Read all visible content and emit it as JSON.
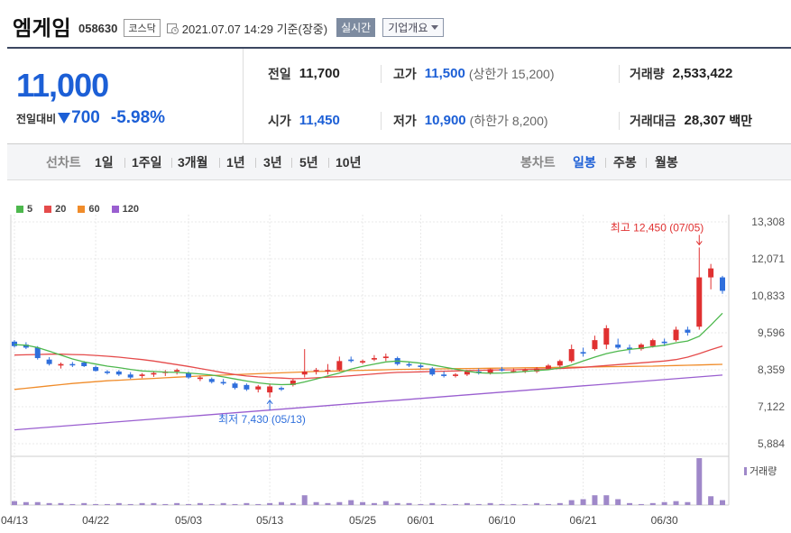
{
  "header": {
    "stock_name": "엠게임",
    "stock_code": "058630",
    "market": "코스닥",
    "timestamp": "2021.07.07 14:29 기준(장중)",
    "realtime_label": "실시간",
    "overview_label": "기업개요"
  },
  "quote": {
    "current_price": "11,000",
    "change_label": "전일대비",
    "change_value": "700",
    "change_pct": "-5.98%",
    "prev_close_label": "전일",
    "prev_close": "11,700",
    "high_label": "고가",
    "high": "11,500",
    "upper_limit": "(상한가 15,200)",
    "volume_label": "거래량",
    "volume": "2,533,422",
    "open_label": "시가",
    "open": "11,450",
    "low_label": "저가",
    "low": "10,900",
    "lower_limit": "(하한가 8,200)",
    "amount_label": "거래대금",
    "amount": "28,307",
    "amount_unit": "백만"
  },
  "periods": {
    "line_label": "선차트",
    "line_items": [
      "1일",
      "1주일",
      "3개월",
      "1년",
      "3년",
      "5년",
      "10년"
    ],
    "candle_label": "봉차트",
    "candle_items": [
      "일봉",
      "주봉",
      "월봉"
    ],
    "active_candle": "일봉"
  },
  "colors": {
    "up": "#e03131",
    "down": "#2f6fdc",
    "ma5": "#4db84d",
    "ma20": "#e54b4b",
    "ma60": "#f08c2a",
    "ma120": "#9a5fd0",
    "volume": "#9f88c9"
  },
  "chart_data": {
    "type": "candlestick",
    "legend": [
      {
        "name": "5",
        "color": "#4db84d"
      },
      {
        "name": "20",
        "color": "#e54b4b"
      },
      {
        "name": "60",
        "color": "#f08c2a"
      },
      {
        "name": "120",
        "color": "#9a5fd0"
      }
    ],
    "y_ticks": [
      "13,308",
      "12,071",
      "10,833",
      "9,596",
      "8,359",
      "7,122",
      "5,884"
    ],
    "ylim": [
      5884,
      13308
    ],
    "x_ticks": [
      "04/13",
      "04/22",
      "05/03",
      "05/13",
      "05/25",
      "06/01",
      "06/10",
      "06/21",
      "06/30"
    ],
    "x_tick_index": [
      0,
      7,
      15,
      22,
      30,
      35,
      42,
      49,
      56
    ],
    "high_annotation": "최고 12,450 (07/05)",
    "low_annotation": "최저 7,430 (05/13)",
    "volume_label": "거래량",
    "candles": [
      [
        9300,
        9350,
        9100,
        9150
      ],
      [
        9200,
        9280,
        9050,
        9100
      ],
      [
        9100,
        9150,
        8700,
        8750
      ],
      [
        8700,
        8780,
        8500,
        8550
      ],
      [
        8500,
        8600,
        8400,
        8550
      ],
      [
        8550,
        8620,
        8450,
        8520
      ],
      [
        8600,
        8650,
        8450,
        8480
      ],
      [
        8450,
        8500,
        8300,
        8320
      ],
      [
        8300,
        8350,
        8200,
        8250
      ],
      [
        8300,
        8350,
        8150,
        8200
      ],
      [
        8200,
        8280,
        8050,
        8100
      ],
      [
        8150,
        8250,
        8080,
        8200
      ],
      [
        8200,
        8300,
        8120,
        8250
      ],
      [
        8250,
        8350,
        8150,
        8300
      ],
      [
        8300,
        8400,
        8200,
        8350
      ],
      [
        8250,
        8300,
        8050,
        8100
      ],
      [
        8050,
        8150,
        7980,
        8100
      ],
      [
        8050,
        8100,
        7900,
        7950
      ],
      [
        7950,
        8050,
        7850,
        7900
      ],
      [
        7900,
        7950,
        7700,
        7750
      ],
      [
        7850,
        7900,
        7650,
        7700
      ],
      [
        7700,
        7850,
        7600,
        7800
      ],
      [
        7600,
        7900,
        7430,
        7800
      ],
      [
        7750,
        7800,
        7650,
        7700
      ],
      [
        7850,
        8050,
        7800,
        8000
      ],
      [
        8200,
        9050,
        8100,
        8300
      ],
      [
        8300,
        8420,
        8200,
        8350
      ],
      [
        8300,
        8550,
        8200,
        8350
      ],
      [
        8350,
        8800,
        8300,
        8650
      ],
      [
        8700,
        8800,
        8600,
        8650
      ],
      [
        8600,
        8700,
        8550,
        8650
      ],
      [
        8700,
        8850,
        8650,
        8750
      ],
      [
        8750,
        8900,
        8650,
        8800
      ],
      [
        8750,
        8800,
        8500,
        8550
      ],
      [
        8550,
        8600,
        8450,
        8500
      ],
      [
        8500,
        8550,
        8400,
        8450
      ],
      [
        8400,
        8450,
        8150,
        8200
      ],
      [
        8200,
        8300,
        8100,
        8150
      ],
      [
        8150,
        8250,
        8100,
        8200
      ],
      [
        8200,
        8350,
        8150,
        8300
      ],
      [
        8300,
        8400,
        8200,
        8250
      ],
      [
        8250,
        8400,
        8200,
        8380
      ],
      [
        8380,
        8450,
        8300,
        8350
      ],
      [
        8300,
        8400,
        8250,
        8320
      ],
      [
        8300,
        8400,
        8250,
        8350
      ],
      [
        8300,
        8450,
        8250,
        8400
      ],
      [
        8400,
        8550,
        8350,
        8500
      ],
      [
        8500,
        8700,
        8450,
        8650
      ],
      [
        8650,
        9200,
        8600,
        9050
      ],
      [
        8950,
        9100,
        8800,
        8900
      ],
      [
        9050,
        9500,
        9000,
        9350
      ],
      [
        9200,
        9850,
        9050,
        9750
      ],
      [
        9200,
        9400,
        9050,
        9100
      ],
      [
        9100,
        9200,
        8900,
        9050
      ],
      [
        9050,
        9250,
        9000,
        9200
      ],
      [
        9150,
        9400,
        9100,
        9350
      ],
      [
        9300,
        9400,
        9150,
        9250
      ],
      [
        9350,
        9800,
        9300,
        9700
      ],
      [
        9700,
        9800,
        9500,
        9600
      ],
      [
        9800,
        12450,
        9700,
        11450
      ],
      [
        11450,
        11900,
        11050,
        11750
      ],
      [
        11450,
        11500,
        10900,
        11000
      ]
    ],
    "ma5": [
      9200,
      9180,
      9100,
      8980,
      8850,
      8720,
      8620,
      8550,
      8480,
      8430,
      8370,
      8320,
      8300,
      8280,
      8270,
      8250,
      8220,
      8180,
      8120,
      8050,
      7980,
      7920,
      7880,
      7860,
      7870,
      7950,
      8050,
      8150,
      8250,
      8380,
      8470,
      8550,
      8620,
      8650,
      8620,
      8580,
      8520,
      8450,
      8380,
      8310,
      8260,
      8240,
      8250,
      8270,
      8300,
      8330,
      8360,
      8420,
      8520,
      8650,
      8780,
      8900,
      8980,
      9040,
      9080,
      9130,
      9180,
      9260,
      9320,
      9480,
      9850,
      10250
    ],
    "ma20": [
      8850,
      8860,
      8870,
      8880,
      8880,
      8870,
      8860,
      8840,
      8810,
      8780,
      8740,
      8700,
      8650,
      8590,
      8530,
      8470,
      8400,
      8330,
      8260,
      8200,
      8150,
      8120,
      8100,
      8080,
      8060,
      8070,
      8090,
      8110,
      8130,
      8160,
      8190,
      8220,
      8250,
      8270,
      8280,
      8290,
      8300,
      8310,
      8320,
      8330,
      8340,
      8350,
      8355,
      8360,
      8370,
      8380,
      8390,
      8400,
      8420,
      8440,
      8470,
      8500,
      8530,
      8560,
      8590,
      8620,
      8650,
      8700,
      8780,
      8900,
      9030,
      9150
    ],
    "ma60": [
      7700,
      7740,
      7780,
      7820,
      7860,
      7900,
      7930,
      7960,
      7990,
      8010,
      8030,
      8050,
      8070,
      8090,
      8110,
      8130,
      8150,
      8165,
      8180,
      8195,
      8210,
      8225,
      8240,
      8255,
      8270,
      8285,
      8300,
      8310,
      8320,
      8330,
      8340,
      8350,
      8360,
      8370,
      8375,
      8380,
      8385,
      8390,
      8395,
      8400,
      8405,
      8410,
      8415,
      8420,
      8425,
      8430,
      8435,
      8440,
      8445,
      8450,
      8455,
      8460,
      8465,
      8470,
      8475,
      8480,
      8490,
      8500,
      8510,
      8520,
      8530,
      8540
    ],
    "ma120": [
      6350,
      6380,
      6410,
      6440,
      6470,
      6500,
      6530,
      6560,
      6590,
      6620,
      6650,
      6680,
      6710,
      6740,
      6770,
      6800,
      6830,
      6860,
      6890,
      6920,
      6950,
      6980,
      7010,
      7040,
      7070,
      7100,
      7130,
      7160,
      7190,
      7220,
      7250,
      7280,
      7310,
      7340,
      7370,
      7400,
      7430,
      7460,
      7490,
      7520,
      7550,
      7580,
      7610,
      7640,
      7670,
      7700,
      7730,
      7760,
      7790,
      7820,
      7850,
      7880,
      7910,
      7940,
      7970,
      8000,
      8030,
      8060,
      8090,
      8120,
      8150,
      8180
    ],
    "volume": [
      4,
      3,
      3,
      2,
      2,
      1,
      2,
      1,
      1,
      2,
      1,
      2,
      2,
      1,
      2,
      1,
      2,
      1,
      2,
      1,
      2,
      1,
      2,
      3,
      2,
      10,
      3,
      2,
      3,
      5,
      3,
      2,
      4,
      2,
      2,
      1,
      2,
      1,
      1,
      2,
      1,
      2,
      1,
      1,
      1,
      2,
      1,
      2,
      5,
      6,
      10,
      10,
      6,
      2,
      1,
      2,
      3,
      4,
      3,
      48,
      9,
      5
    ]
  }
}
